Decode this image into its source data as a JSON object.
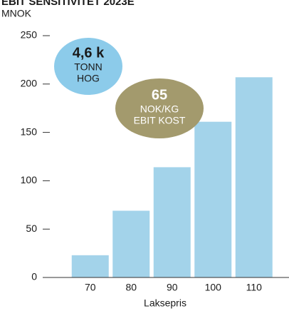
{
  "chart_data": {
    "type": "bar",
    "title": "EBIT SENSITIVITET 2023E",
    "subtitle": "MNOK",
    "x_label": "Laksepris",
    "categories": [
      "70",
      "80",
      "90",
      "100",
      "110"
    ],
    "values": [
      23,
      69,
      114,
      161,
      207
    ],
    "color": "#a3d3ea",
    "ylim": [
      0,
      250
    ],
    "yticks": [
      0,
      50,
      100,
      150,
      200,
      250
    ],
    "annotations": [
      {
        "lines": [
          "4,6 k",
          "TONN",
          "HOG"
        ],
        "color": "#8ccbea"
      },
      {
        "lines": [
          "65",
          "NOK/KG",
          "EBIT KOST"
        ],
        "color": "#a39a6d"
      }
    ]
  }
}
